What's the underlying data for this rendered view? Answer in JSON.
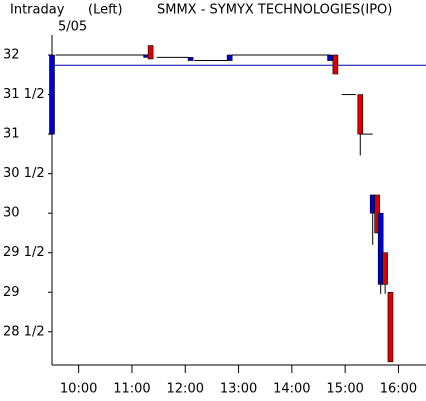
{
  "chart_data": {
    "type": "candlestick",
    "title": "Intraday",
    "subtitle": "(Left)",
    "symbol": "SMMX - SYMYX TECHNOLOGIES(IPO)",
    "date": "5/05",
    "x": [
      570,
      676,
      681,
      726,
      770,
      883,
      889,
      917,
      931,
      936,
      940,
      945,
      951
    ],
    "open": [
      31.0,
      31.97,
      32.12,
      31.93,
      31.93,
      31.93,
      32.0,
      31.5,
      30.0,
      30.23,
      29.1,
      29.5,
      29.0
    ],
    "high": [
      32.0,
      32.0,
      32.12,
      31.97,
      32.0,
      32.0,
      32.0,
      31.5,
      30.23,
      30.23,
      30.0,
      29.5,
      29.0
    ],
    "low": [
      31.0,
      31.97,
      31.95,
      31.93,
      31.93,
      31.93,
      31.76,
      30.73,
      29.6,
      29.75,
      28.98,
      28.98,
      28.12
    ],
    "close": [
      32.0,
      32.0,
      31.95,
      31.97,
      32.0,
      32.0,
      31.76,
      31.0,
      30.23,
      29.75,
      30.0,
      29.1,
      28.12
    ],
    "up_color": "#0000cc",
    "down_color": "#dd0000",
    "step_line": {
      "x": [
        574,
        680,
        680,
        688,
        724,
        724,
        730,
        768,
        768,
        772,
        883,
        883,
        896,
        912,
        912,
        918,
        931
      ],
      "values": [
        32.0,
        32.0,
        null,
        31.97,
        31.97,
        null,
        31.93,
        31.93,
        null,
        32.0,
        32.0,
        null,
        31.5,
        31.5,
        null,
        31.0,
        31.0
      ],
      "color": "#000000"
    },
    "reference_line": {
      "value": 31.87,
      "color": "#0000aa"
    },
    "xlim": [
      570,
      991
    ],
    "ylim": [
      28.08,
      32.19
    ],
    "xticks": [
      {
        "value": 600,
        "label": "10:00"
      },
      {
        "value": 660,
        "label": "11:00"
      },
      {
        "value": 720,
        "label": "12:00"
      },
      {
        "value": 780,
        "label": "13:00"
      },
      {
        "value": 840,
        "label": "14:00"
      },
      {
        "value": 900,
        "label": "15:00"
      },
      {
        "value": 960,
        "label": "16:00"
      }
    ],
    "yticks": [
      32,
      {
        "value": 31.5,
        "label": "31 1/2"
      },
      31,
      {
        "value": 30.5,
        "label": "30 1/2"
      },
      30,
      {
        "value": 29.5,
        "label": "29 1/2"
      },
      29,
      {
        "value": 28.5,
        "label": "28 1/2"
      }
    ]
  }
}
